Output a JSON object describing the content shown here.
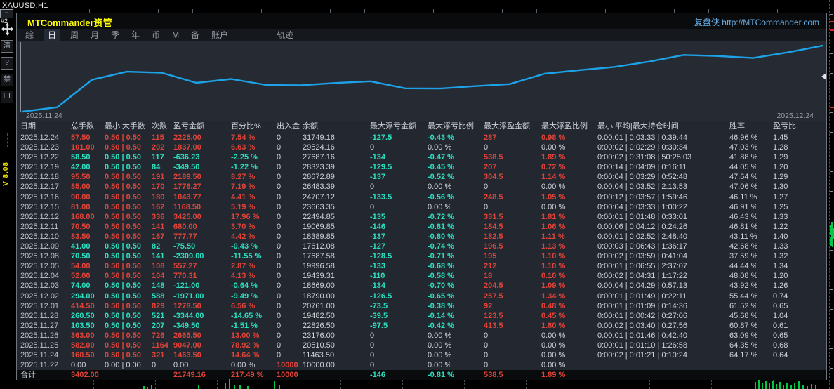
{
  "window": {
    "symbol_period": "XAUUSD,H1"
  },
  "colors": {
    "red": "#e04338",
    "cyan": "#2ae0c0",
    "text": "#cfd3d9",
    "dim": "#bfc3c9",
    "yellow": "#ffff00",
    "link": "#69b0e8",
    "line": "#1da2e8",
    "green": "#00c944",
    "menu": "#9aa0a8",
    "panel_bg": "#232830",
    "titlebar_bg": "#0a0b0d"
  },
  "panel": {
    "title": "MTCommander资管",
    "brand": "复盘侠 http://MTCommander.com",
    "menu": {
      "items": [
        "综",
        "日",
        "周",
        "月",
        "季",
        "年",
        "币",
        "M",
        "备",
        "账户",
        "轨迹"
      ],
      "active": "日"
    },
    "table": {
      "headers": [
        "日期",
        "总手数",
        "最小|大手数",
        "次数",
        "盈亏金额",
        "百分比%",
        "出入金",
        "余额",
        "最大浮亏金额",
        "最大浮亏比例",
        "最大浮盈金额",
        "最大浮盈比例",
        "最小|平均|最大持仓时间",
        "胜率",
        "盈亏比"
      ],
      "rows": [
        {
          "sign": "pos",
          "cells": [
            "2025.12.24",
            "57.50",
            "0.50 | 0.50",
            "115",
            "2225.00",
            "7.54 %",
            "0",
            "31749.16",
            "-127.5",
            "-0.43 %",
            "287",
            "0.98 %",
            "0:00:01 | 0:03:33 | 0:39:44",
            "46.96 %",
            "1.45"
          ]
        },
        {
          "sign": "pos",
          "cells": [
            "2025.12.23",
            "101.00",
            "0.50 | 0.50",
            "202",
            "1837.00",
            "6.63 %",
            "0",
            "29524.16",
            "0",
            "0.00 %",
            "0",
            "0.00 %",
            "0:00:02 | 0:02:29 | 0:30:34",
            "47.03 %",
            "1.28"
          ]
        },
        {
          "sign": "neg",
          "cells": [
            "2025.12.22",
            "58.50",
            "0.50 | 0.50",
            "117",
            "-636.23",
            "-2.25 %",
            "0",
            "27687.16",
            "-134",
            "-0.47 %",
            "538.5",
            "1.89 %",
            "0:00:02 | 0:31:08 | 50:25:03",
            "41.88 %",
            "1.29"
          ]
        },
        {
          "sign": "neg",
          "cells": [
            "2025.12.19",
            "42.00",
            "0.50 | 0.50",
            "84",
            "-349.50",
            "-1.22 %",
            "0",
            "28323.39",
            "-129.5",
            "-0.45 %",
            "207",
            "0.72 %",
            "0:00:14 | 0:04:09 | 0:16:11",
            "44.05 %",
            "1.20"
          ]
        },
        {
          "sign": "pos",
          "cells": [
            "2025.12.18",
            "95.50",
            "0.50 | 0.50",
            "191",
            "2189.50",
            "8.27 %",
            "0",
            "28672.89",
            "-137",
            "-0.52 %",
            "304.5",
            "1.14 %",
            "0:00:04 | 0:03:29 | 0:52:48",
            "47.64 %",
            "1.29"
          ]
        },
        {
          "sign": "pos",
          "cells": [
            "2025.12.17",
            "85.00",
            "0.50 | 0.50",
            "170",
            "1776.27",
            "7.19 %",
            "0",
            "26483.39",
            "0",
            "0.00 %",
            "0",
            "0.00 %",
            "0:00:04 | 0:03:52 | 2:13:53",
            "47.06 %",
            "1.30"
          ]
        },
        {
          "sign": "pos",
          "cells": [
            "2025.12.16",
            "90.00",
            "0.50 | 0.50",
            "180",
            "1043.77",
            "4.41 %",
            "0",
            "24707.12",
            "-133.5",
            "-0.56 %",
            "248.5",
            "1.05 %",
            "0:00:12 | 0:03:57 | 1:59:46",
            "46.11 %",
            "1.27"
          ]
        },
        {
          "sign": "pos",
          "cells": [
            "2025.12.15",
            "81.00",
            "0.50 | 0.50",
            "162",
            "1168.50",
            "5.19 %",
            "0",
            "23663.35",
            "0",
            "0.00 %",
            "0",
            "0.00 %",
            "0:00:04 | 0:03:33 | 1:00:22",
            "46.91 %",
            "1.25"
          ]
        },
        {
          "sign": "pos",
          "cells": [
            "2025.12.12",
            "168.00",
            "0.50 | 0.50",
            "336",
            "3425.00",
            "17.96 %",
            "0",
            "22494.85",
            "-135",
            "-0.72 %",
            "331.5",
            "1.81 %",
            "0:00:01 | 0:01:48 | 0:33:01",
            "46.43 %",
            "1.33"
          ]
        },
        {
          "sign": "pos",
          "cells": [
            "2025.12.11",
            "70.50",
            "0.50 | 0.50",
            "141",
            "680.00",
            "3.70 %",
            "0",
            "19069.85",
            "-146",
            "-0.81 %",
            "184.5",
            "1.06 %",
            "0:00:06 | 0:04:12 | 0:24:26",
            "46.81 %",
            "1.22"
          ]
        },
        {
          "sign": "pos",
          "cells": [
            "2025.12.10",
            "83.50",
            "0.50 | 0.50",
            "167",
            "777.77",
            "4.42 %",
            "0",
            "18389.85",
            "-137",
            "-0.80 %",
            "182.5",
            "1.11 %",
            "0:00:01 | 0:02:52 | 2:48:40",
            "43.11 %",
            "1.40"
          ]
        },
        {
          "sign": "neg",
          "cells": [
            "2025.12.09",
            "41.00",
            "0.50 | 0.50",
            "82",
            "-75.50",
            "-0.43 %",
            "0",
            "17612.08",
            "-127",
            "-0.74 %",
            "196.5",
            "1.13 %",
            "0:00:03 | 0:06:43 | 1:36:17",
            "42.68 %",
            "1.33"
          ]
        },
        {
          "sign": "neg",
          "cells": [
            "2025.12.08",
            "70.50",
            "0.50 | 0.50",
            "141",
            "-2309.00",
            "-11.55 %",
            "0",
            "17687.58",
            "-128.5",
            "-0.71 %",
            "195",
            "1.10 %",
            "0:00:02 | 0:03:59 | 0:41:04",
            "37.59 %",
            "1.32"
          ]
        },
        {
          "sign": "pos",
          "cells": [
            "2025.12.05",
            "54.00",
            "0.50 | 0.50",
            "108",
            "557.27",
            "2.87 %",
            "0",
            "19996.58",
            "-133",
            "-0.68 %",
            "212",
            "1.10 %",
            "0:00:01 | 0:06:55 | 2:37:07",
            "44.44 %",
            "1.34"
          ]
        },
        {
          "sign": "pos",
          "cells": [
            "2025.12.04",
            "52.00",
            "0.50 | 0.50",
            "104",
            "770.31",
            "4.13 %",
            "0",
            "19439.31",
            "-110",
            "-0.58 %",
            "18",
            "0.10 %",
            "0:00:02 | 0:04:31 | 1:17:22",
            "48.08 %",
            "1.20"
          ]
        },
        {
          "sign": "neg",
          "cells": [
            "2025.12.03",
            "74.00",
            "0.50 | 0.50",
            "148",
            "-121.00",
            "-0.64 %",
            "0",
            "18669.00",
            "-134",
            "-0.70 %",
            "204.5",
            "1.09 %",
            "0:00:04 | 0:04:29 | 0:57:13",
            "43.92 %",
            "1.26"
          ]
        },
        {
          "sign": "neg",
          "cells": [
            "2025.12.02",
            "294.00",
            "0.50 | 0.50",
            "588",
            "-1971.00",
            "-9.49 %",
            "0",
            "18790.00",
            "-126.5",
            "-0.65 %",
            "257.5",
            "1.34 %",
            "0:00:01 | 0:01:49 | 0:22:11",
            "55.44 %",
            "0.74"
          ]
        },
        {
          "sign": "pos",
          "cells": [
            "2025.12.01",
            "414.50",
            "0.50 | 0.50",
            "829",
            "1278.50",
            "6.56 %",
            "0",
            "20761.00",
            "-73.5",
            "-0.38 %",
            "92",
            "0.48 %",
            "0:00:01 | 0:01:09 | 0:14:36",
            "61.52 %",
            "0.65"
          ]
        },
        {
          "sign": "neg",
          "cells": [
            "2025.11.28",
            "260.50",
            "0.50 | 0.50",
            "521",
            "-3344.00",
            "-14.65 %",
            "0",
            "19482.50",
            "-39.5",
            "-0.14 %",
            "123.5",
            "0.45 %",
            "0:00:01 | 0:00:42 | 0:27:06",
            "45.68 %",
            "1.04"
          ]
        },
        {
          "sign": "neg",
          "cells": [
            "2025.11.27",
            "103.50",
            "0.50 | 0.50",
            "207",
            "-349.50",
            "-1.51 %",
            "0",
            "22826.50",
            "-97.5",
            "-0.42 %",
            "413.5",
            "1.80 %",
            "0:00:02 | 0:03:40 | 0:27:56",
            "60.87 %",
            "0.61"
          ]
        },
        {
          "sign": "pos",
          "cells": [
            "2025.11.26",
            "363.00",
            "0.50 | 0.50",
            "726",
            "2665.50",
            "13.00 %",
            "0",
            "23176.00",
            "0",
            "0.00 %",
            "0",
            "0.00 %",
            "0:00:01 | 0:01:46 | 0:42:40",
            "63.09 %",
            "0.65"
          ]
        },
        {
          "sign": "pos",
          "cells": [
            "2025.11.25",
            "582.00",
            "0.50 | 0.50",
            "1164",
            "9047.00",
            "78.92 %",
            "0",
            "20510.50",
            "0",
            "0.00 %",
            "0",
            "0.00 %",
            "0:00:01 | 0:01:10 | 1:26:58",
            "64.35 %",
            "0.68"
          ]
        },
        {
          "sign": "pos",
          "cells": [
            "2025.11.24",
            "160.50",
            "0.50 | 0.50",
            "321",
            "1463.50",
            "14.64 %",
            "0",
            "11463.50",
            "0",
            "0.00 %",
            "0",
            "0.00 %",
            "0:00:02 | 0:01:21 | 0:10:24",
            "64.17 %",
            "0.64"
          ]
        },
        {
          "sign": "flat",
          "cells": [
            "2025.11.22",
            "0.00",
            "0.00 | 0.00",
            "0",
            "0.00",
            "0.00 %",
            "10000",
            "10000.00",
            "0",
            "0.00 %",
            "0",
            "0.00 %",
            "",
            "",
            ""
          ]
        }
      ],
      "total": {
        "sign": "pos",
        "cells": [
          "合计",
          "3402.00",
          "",
          "",
          "21749.16",
          "217.49 %",
          "10000",
          "",
          "-146",
          "-0.81 %",
          "538.5",
          "1.89 %",
          "",
          "",
          ""
        ]
      }
    }
  },
  "chart_data": {
    "type": "line",
    "title": "账户余额曲线 (equity curve)",
    "x_start_label": "2025.11.24",
    "x_end_label": "2025.12.24",
    "ylim": [
      10000,
      31749.16
    ],
    "grid": false,
    "line_color": "#1da2e8",
    "series": [
      {
        "name": "余额",
        "x": [
          "2025.11.22",
          "2025.11.24",
          "2025.11.25",
          "2025.11.26",
          "2025.11.27",
          "2025.11.28",
          "2025.12.01",
          "2025.12.02",
          "2025.12.03",
          "2025.12.04",
          "2025.12.05",
          "2025.12.08",
          "2025.12.09",
          "2025.12.10",
          "2025.12.11",
          "2025.12.12",
          "2025.12.15",
          "2025.12.16",
          "2025.12.17",
          "2025.12.18",
          "2025.12.19",
          "2025.12.22",
          "2025.12.23",
          "2025.12.24"
        ],
        "values": [
          10000,
          11463.5,
          20510.5,
          23176.0,
          22826.5,
          19482.5,
          20761.0,
          18790.0,
          18669.0,
          19439.31,
          19996.58,
          17687.58,
          17612.08,
          18389.85,
          19069.85,
          22494.85,
          23663.35,
          24707.12,
          26483.39,
          28672.89,
          28323.39,
          27687.16,
          29524.16,
          31749.16
        ]
      }
    ]
  },
  "left_toolbar": {
    "window_id": "#2",
    "version": "V 8.08",
    "buttons": [
      {
        "name": "clear-button",
        "label": "清"
      },
      {
        "name": "help-button",
        "label": "?"
      },
      {
        "name": "disable-button",
        "label": "禁"
      },
      {
        "name": "restore-window-button",
        "label": "❐"
      }
    ]
  },
  "background": {
    "volume_bars": [
      [
        204,
        4
      ],
      [
        209,
        3
      ],
      [
        215,
        5
      ],
      [
        282,
        6
      ],
      [
        320,
        8
      ],
      [
        326,
        14
      ],
      [
        333,
        6
      ],
      [
        341,
        5
      ],
      [
        352,
        4
      ],
      [
        390,
        11
      ],
      [
        397,
        5
      ],
      [
        1075,
        10
      ],
      [
        1080,
        13
      ],
      [
        1085,
        9
      ],
      [
        1090,
        12
      ],
      [
        1095,
        8
      ],
      [
        1100,
        11
      ],
      [
        1105,
        7
      ],
      [
        1110,
        10
      ],
      [
        1115,
        6
      ],
      [
        1120,
        9
      ],
      [
        1126,
        5
      ],
      [
        1131,
        8
      ],
      [
        1137,
        11
      ],
      [
        1143,
        6
      ],
      [
        1149,
        4
      ],
      [
        1155,
        7
      ],
      [
        1161,
        5
      ]
    ],
    "right_candles": [
      [
        1182,
        320,
        14
      ],
      [
        1184,
        316,
        22
      ],
      [
        1186,
        324,
        16
      ],
      [
        1183,
        338,
        12
      ],
      [
        1185,
        334,
        18
      ]
    ]
  }
}
